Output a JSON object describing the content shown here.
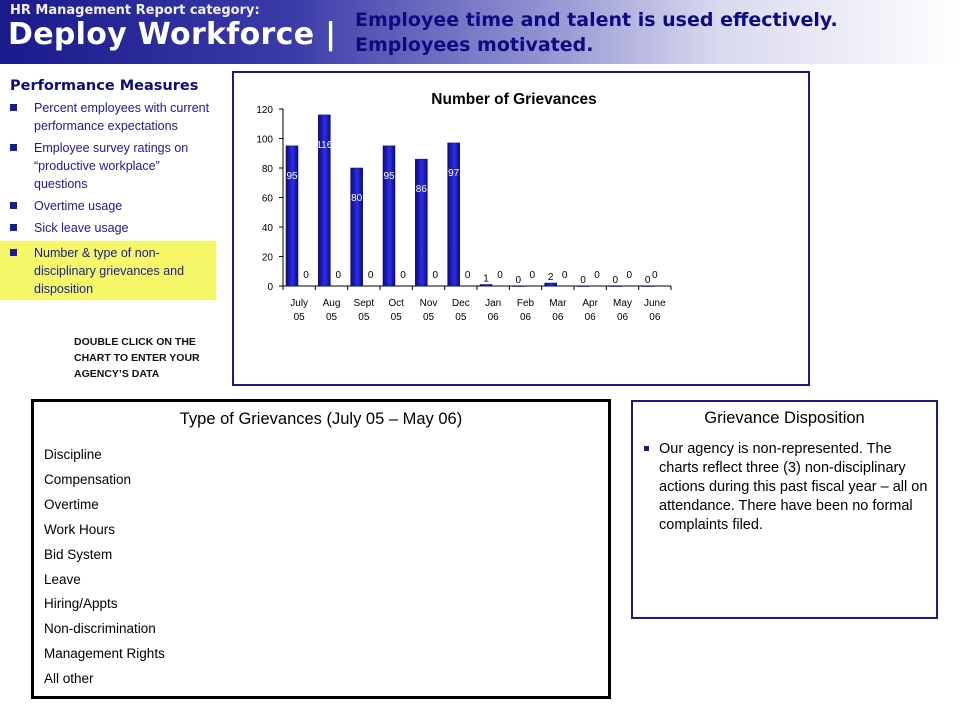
{
  "header": {
    "category": "HR Management Report category:",
    "title": "Deploy Workforce |",
    "goal_line1": "Employee time and talent is used effectively.",
    "goal_line2": "Employees motivated."
  },
  "measures": {
    "title": "Performance Measures",
    "items": [
      "Percent employees with current performance expectations",
      "Employee survey ratings on “productive workplace” questions",
      "Overtime usage",
      "Sick leave usage",
      "Number & type of non-disciplinary grievances and disposition"
    ],
    "highlight_color": "#f7f76a"
  },
  "instruction": "DOUBLE CLICK ON THE CHART TO ENTER YOUR AGENCY’S DATA",
  "chart_data": {
    "type": "bar",
    "title": "Number of Grievances",
    "categories": [
      [
        "July",
        "05"
      ],
      [
        "Aug",
        "05"
      ],
      [
        "Sept",
        "05"
      ],
      [
        "Oct",
        "05"
      ],
      [
        "Nov",
        "05"
      ],
      [
        "Dec",
        "05"
      ],
      [
        "Jan",
        "06"
      ],
      [
        "Feb",
        "06"
      ],
      [
        "Mar",
        "06"
      ],
      [
        "Apr",
        "06"
      ],
      [
        "May",
        "06"
      ],
      [
        "June",
        "06"
      ]
    ],
    "series": [
      {
        "values": [
          95,
          116,
          80,
          95,
          86,
          97,
          1,
          0,
          2,
          0,
          0,
          0
        ]
      },
      {
        "values": [
          0,
          0,
          0,
          0,
          0,
          0,
          0,
          0,
          0,
          0,
          0,
          null
        ]
      }
    ],
    "ylim": [
      0,
      120
    ],
    "yticks": [
      0,
      20,
      40,
      60,
      80,
      100,
      120
    ],
    "xlabel": "",
    "ylabel": "",
    "colors": [
      "#0c0c7a",
      "#2c2cf0"
    ]
  },
  "types": {
    "title": "Type of Grievances (July 05 – May 06)",
    "items": [
      "Discipline",
      "Compensation",
      "Overtime",
      "Work Hours",
      "Bid System",
      "Leave",
      "Hiring/Appts",
      "Non-discrimination",
      "Management Rights",
      "All other"
    ]
  },
  "disposition": {
    "title": "Grievance Disposition",
    "text": "Our agency is non-represented. The charts reflect three (3) non-disciplinary actions during this past fiscal year – all on attendance.  There have been no formal complaints filed."
  }
}
